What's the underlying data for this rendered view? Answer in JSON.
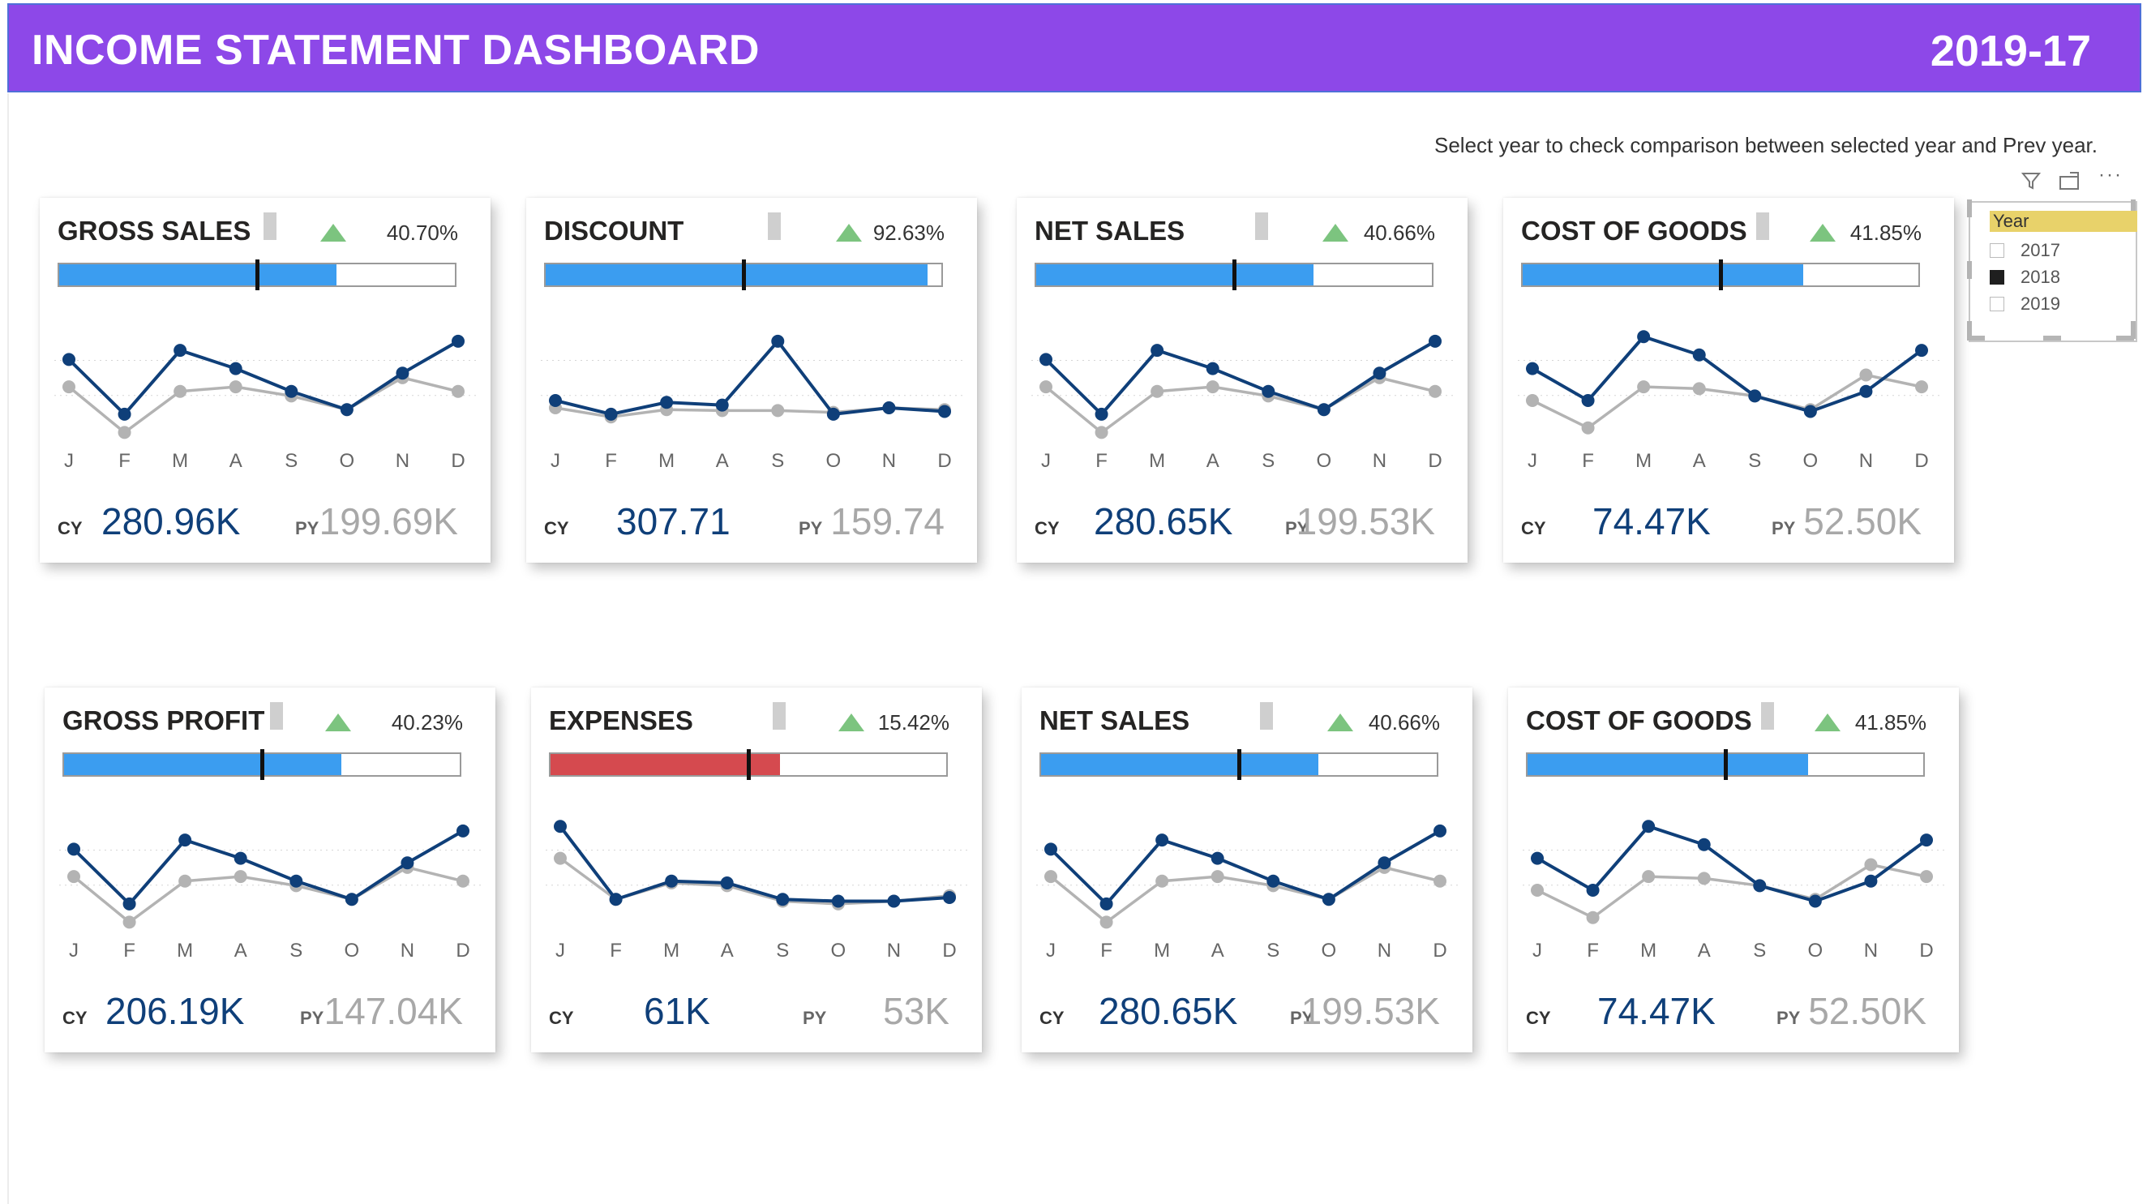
{
  "header": {
    "title": "INCOME STATEMENT DASHBOARD",
    "year": "2019-17"
  },
  "instruction": "Select year to check comparison between selected year and Prev year.",
  "visual_tools": {
    "filter_icon": "filter-icon",
    "focus_icon": "focus-mode-icon",
    "more_icon": "more-options-icon"
  },
  "slicer": {
    "header": "Year",
    "items": [
      {
        "label": "2017",
        "checked": false
      },
      {
        "label": "2018",
        "checked": true
      },
      {
        "label": "2019",
        "checked": false
      }
    ]
  },
  "colors": {
    "header_bg": "#8d48e8",
    "bar_blue": "#3b9df0",
    "bar_red": "#d54a4f",
    "cy_line": "#0f3f79",
    "py_line": "#b3b3b3",
    "kpi_up": "#7cc47f"
  },
  "cards": [
    {
      "title": "GROSS SALES",
      "pct": "40.70%",
      "bar_fill": 0.7,
      "target": 0.5,
      "bar_color": "#3b9df0",
      "cy_label": "CY",
      "cy": "280.96K",
      "py_label": "PY",
      "py": "199.69K"
    },
    {
      "title": "DISCOUNT",
      "pct": "92.63%",
      "bar_fill": 0.965,
      "target": 0.5,
      "bar_color": "#3b9df0",
      "cy_label": "CY",
      "cy": "307.71",
      "py_label": "PY",
      "py": "159.74"
    },
    {
      "title": "NET SALES",
      "pct": "40.66%",
      "bar_fill": 0.7,
      "target": 0.5,
      "bar_color": "#3b9df0",
      "cy_label": "CY",
      "cy": "280.65K",
      "py_label": "PY",
      "py": "199.53K"
    },
    {
      "title": "COST OF GOODS",
      "pct": "41.85%",
      "bar_fill": 0.71,
      "target": 0.5,
      "bar_color": "#3b9df0",
      "cy_label": "CY",
      "cy": "74.47K",
      "py_label": "PY",
      "py": "52.50K"
    },
    {
      "title": "GROSS PROFIT",
      "pct": "40.23%",
      "bar_fill": 0.7,
      "target": 0.5,
      "bar_color": "#3b9df0",
      "cy_label": "CY",
      "cy": "206.19K",
      "py_label": "PY",
      "py": "147.04K"
    },
    {
      "title": "EXPENSES",
      "pct": "15.42%",
      "bar_fill": 0.58,
      "target": 0.5,
      "bar_color": "#d54a4f",
      "cy_label": "CY",
      "cy": "61K",
      "py_label": "PY",
      "py": "53K"
    },
    {
      "title": "NET SALES",
      "pct": "40.66%",
      "bar_fill": 0.7,
      "target": 0.5,
      "bar_color": "#3b9df0",
      "cy_label": "CY",
      "cy": "280.65K",
      "py_label": "PY",
      "py": "199.53K"
    },
    {
      "title": "COST OF GOODS",
      "pct": "41.85%",
      "bar_fill": 0.71,
      "target": 0.5,
      "bar_color": "#3b9df0",
      "cy_label": "CY",
      "cy": "74.47K",
      "py_label": "PY",
      "py": "52.50K"
    }
  ],
  "chart_data": [
    {
      "type": "line",
      "x": [
        "J",
        "F",
        "M",
        "A",
        "S",
        "O",
        "N",
        "D"
      ],
      "series": [
        {
          "values": [
            0.65,
            0.05,
            0.75,
            0.55,
            0.3,
            0.1,
            0.5,
            0.85
          ]
        },
        {
          "values": [
            0.35,
            -0.15,
            0.3,
            0.35,
            0.25,
            0.1,
            0.45,
            0.3
          ]
        }
      ]
    },
    {
      "type": "line",
      "x": [
        "J",
        "F",
        "M",
        "A",
        "S",
        "O",
        "N",
        "D"
      ],
      "series": [
        {
          "values": [
            0.2,
            0.05,
            0.18,
            0.15,
            0.85,
            0.05,
            0.12,
            0.08
          ]
        },
        {
          "values": [
            0.12,
            0.02,
            0.1,
            0.09,
            0.09,
            0.07,
            0.12,
            0.1
          ]
        }
      ]
    },
    {
      "type": "line",
      "x": [
        "J",
        "F",
        "M",
        "A",
        "S",
        "O",
        "N",
        "D"
      ],
      "series": [
        {
          "values": [
            0.65,
            0.05,
            0.75,
            0.55,
            0.3,
            0.1,
            0.5,
            0.85
          ]
        },
        {
          "values": [
            0.35,
            -0.15,
            0.3,
            0.35,
            0.25,
            0.1,
            0.45,
            0.3
          ]
        }
      ]
    },
    {
      "type": "line",
      "x": [
        "J",
        "F",
        "M",
        "A",
        "S",
        "O",
        "N",
        "D"
      ],
      "series": [
        {
          "values": [
            0.55,
            0.2,
            0.9,
            0.7,
            0.25,
            0.08,
            0.3,
            0.75
          ]
        },
        {
          "values": [
            0.2,
            -0.1,
            0.35,
            0.33,
            0.25,
            0.1,
            0.48,
            0.35
          ]
        }
      ]
    },
    {
      "type": "line",
      "x": [
        "J",
        "F",
        "M",
        "A",
        "S",
        "O",
        "N",
        "D"
      ],
      "series": [
        {
          "values": [
            0.65,
            0.05,
            0.75,
            0.55,
            0.3,
            0.1,
            0.5,
            0.85
          ]
        },
        {
          "values": [
            0.35,
            -0.15,
            0.3,
            0.35,
            0.25,
            0.1,
            0.45,
            0.3
          ]
        }
      ]
    },
    {
      "type": "line",
      "x": [
        "J",
        "F",
        "M",
        "A",
        "S",
        "O",
        "N",
        "D"
      ],
      "series": [
        {
          "values": [
            0.9,
            0.1,
            0.3,
            0.28,
            0.1,
            0.08,
            0.08,
            0.12
          ]
        },
        {
          "values": [
            0.55,
            0.1,
            0.28,
            0.25,
            0.08,
            0.05,
            0.08,
            0.14
          ]
        }
      ]
    },
    {
      "type": "line",
      "x": [
        "J",
        "F",
        "M",
        "A",
        "S",
        "O",
        "N",
        "D"
      ],
      "series": [
        {
          "values": [
            0.65,
            0.05,
            0.75,
            0.55,
            0.3,
            0.1,
            0.5,
            0.85
          ]
        },
        {
          "values": [
            0.35,
            -0.15,
            0.3,
            0.35,
            0.25,
            0.1,
            0.45,
            0.3
          ]
        }
      ]
    },
    {
      "type": "line",
      "x": [
        "J",
        "F",
        "M",
        "A",
        "S",
        "O",
        "N",
        "D"
      ],
      "series": [
        {
          "values": [
            0.55,
            0.2,
            0.9,
            0.7,
            0.25,
            0.08,
            0.3,
            0.75
          ]
        },
        {
          "values": [
            0.2,
            -0.1,
            0.35,
            0.33,
            0.25,
            0.1,
            0.48,
            0.35
          ]
        }
      ]
    }
  ]
}
